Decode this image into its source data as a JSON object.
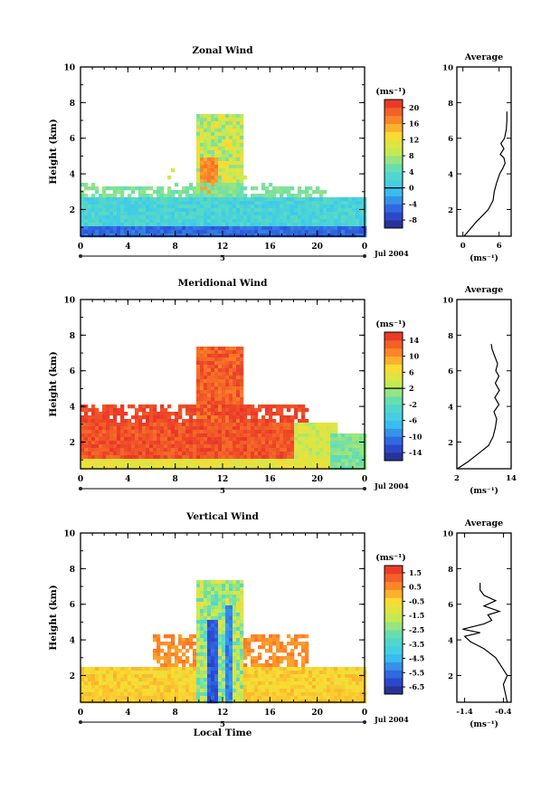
{
  "chart_data": [
    {
      "type": "heatmap",
      "title": "Zonal Wind",
      "ylabel": "Height (km)",
      "xlabel": "",
      "x_ticks": [
        "0",
        "4",
        "8",
        "12",
        "16",
        "20",
        "0"
      ],
      "y_ticks": [
        "2",
        "4",
        "6",
        "8",
        "10"
      ],
      "ylim": [
        0.5,
        10
      ],
      "date_day": "5",
      "date_label": "Jul 2004",
      "colorbar": {
        "unit": "(ms⁻¹)",
        "ticks": [
          "-8",
          "-4",
          "0",
          "4",
          "8",
          "12",
          "16",
          "20"
        ],
        "min": -10,
        "max": 22,
        "zero": 0
      },
      "avg": {
        "title": "Average",
        "xlabel": "(ms⁻¹)",
        "x_ticks": [
          "0",
          "6"
        ],
        "xlim": [
          -1,
          8
        ],
        "y_ticks": [
          "2",
          "4",
          "6",
          "8",
          "10"
        ],
        "profile": [
          [
            0.2,
            0.5
          ],
          [
            1.2,
            0.9
          ],
          [
            2.2,
            1.3
          ],
          [
            3.1,
            1.6
          ],
          [
            4.2,
            2.0
          ],
          [
            5.0,
            2.5
          ],
          [
            5.2,
            3.0
          ],
          [
            5.6,
            3.5
          ],
          [
            6.1,
            4.0
          ],
          [
            6.6,
            4.3
          ],
          [
            7.0,
            4.6
          ],
          [
            6.8,
            4.9
          ],
          [
            6.2,
            5.1
          ],
          [
            6.8,
            5.4
          ],
          [
            6.3,
            5.7
          ],
          [
            6.9,
            6.0
          ],
          [
            7.2,
            6.5
          ],
          [
            7.3,
            7.0
          ],
          [
            7.3,
            7.5
          ]
        ]
      }
    },
    {
      "type": "heatmap",
      "title": "Meridional Wind",
      "ylabel": "Height (km)",
      "xlabel": "",
      "x_ticks": [
        "0",
        "4",
        "8",
        "12",
        "16",
        "20",
        "0"
      ],
      "y_ticks": [
        "2",
        "4",
        "6",
        "8",
        "10"
      ],
      "ylim": [
        0.5,
        10
      ],
      "date_day": "5",
      "date_label": "Jul 2004",
      "colorbar": {
        "unit": "(ms⁻¹)",
        "ticks": [
          "-14",
          "-10",
          "-6",
          "-2",
          "2",
          "6",
          "10",
          "14"
        ],
        "min": -16,
        "max": 16,
        "zero": 2
      },
      "avg": {
        "title": "Average",
        "xlabel": "(ms⁻¹)",
        "x_ticks": [
          "2",
          "14"
        ],
        "xlim": [
          2,
          14
        ],
        "y_ticks": [
          "2",
          "4",
          "6",
          "8",
          "10"
        ],
        "profile": [
          [
            2.1,
            0.5
          ],
          [
            4.5,
            0.9
          ],
          [
            7.0,
            1.4
          ],
          [
            9.0,
            1.8
          ],
          [
            10.0,
            2.3
          ],
          [
            10.5,
            2.8
          ],
          [
            10.8,
            3.3
          ],
          [
            10.2,
            3.7
          ],
          [
            11.3,
            4.1
          ],
          [
            10.4,
            4.5
          ],
          [
            11.4,
            4.9
          ],
          [
            10.5,
            5.3
          ],
          [
            11.3,
            5.7
          ],
          [
            10.6,
            6.0
          ],
          [
            11.0,
            6.4
          ],
          [
            10.4,
            6.8
          ],
          [
            9.8,
            7.2
          ],
          [
            9.6,
            7.5
          ]
        ]
      }
    },
    {
      "type": "heatmap",
      "title": "Vertical Wind",
      "ylabel": "Height (km)",
      "xlabel": "Local Time",
      "x_ticks": [
        "0",
        "4",
        "8",
        "12",
        "16",
        "20",
        "0"
      ],
      "y_ticks": [
        "2",
        "4",
        "6",
        "8",
        "10"
      ],
      "ylim": [
        0.5,
        10
      ],
      "date_day": "5",
      "date_label": "Jul 2004",
      "colorbar": {
        "unit": "(ms⁻¹)",
        "ticks": [
          "-6.5",
          "-5.5",
          "-4.5",
          "-3.5",
          "-2.5",
          "-1.5",
          "-0.5",
          "0.5",
          "1.5"
        ],
        "min": -7,
        "max": 2,
        "zero": null
      },
      "avg": {
        "title": "Average",
        "xlabel": "(ms⁻¹)",
        "x_ticks": [
          "-1.4",
          "-0.4"
        ],
        "xlim": [
          -1.6,
          -0.2
        ],
        "y_ticks": [
          "2",
          "4",
          "6",
          "8",
          "10"
        ],
        "profile": [
          [
            -0.3,
            0.5
          ],
          [
            -0.35,
            1.0
          ],
          [
            -0.4,
            1.5
          ],
          [
            -0.3,
            2.0
          ],
          [
            -0.45,
            2.5
          ],
          [
            -0.6,
            3.0
          ],
          [
            -0.9,
            3.5
          ],
          [
            -1.25,
            3.9
          ],
          [
            -1.4,
            4.2
          ],
          [
            -1.0,
            4.4
          ],
          [
            -1.45,
            4.6
          ],
          [
            -0.9,
            4.9
          ],
          [
            -0.7,
            5.1
          ],
          [
            -0.8,
            5.4
          ],
          [
            -0.5,
            5.6
          ],
          [
            -0.9,
            5.9
          ],
          [
            -0.6,
            6.2
          ],
          [
            -0.9,
            6.5
          ],
          [
            -1.0,
            6.8
          ],
          [
            -1.0,
            7.2
          ]
        ]
      }
    }
  ],
  "footer": {
    "xlabel": "Local Time"
  }
}
